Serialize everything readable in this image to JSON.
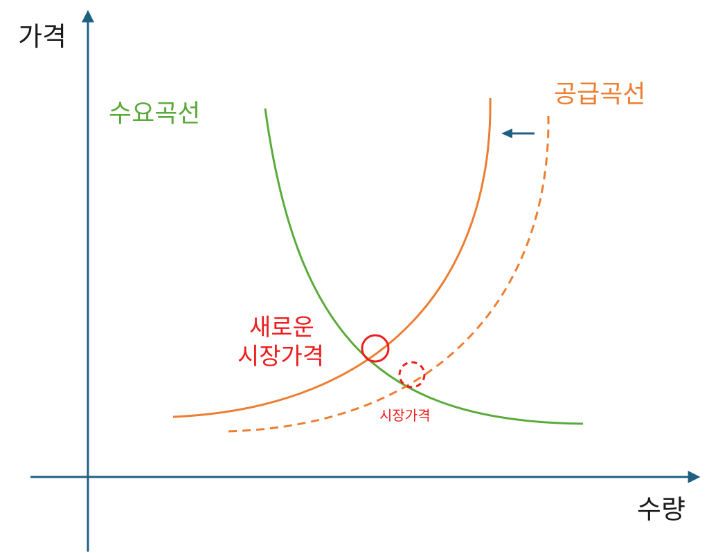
{
  "colors": {
    "axis": "#1f5f80",
    "demand": "#5aaa3a",
    "supply": "#ed7d31",
    "equilibrium": "#ee1c1c"
  },
  "axes": {
    "y_label": "가격",
    "x_label": "수량"
  },
  "curves": {
    "demand_label": "수요곡선",
    "supply_label": "공급곡선"
  },
  "equilibrium": {
    "new_line1": "새로운",
    "new_line2": "시장가격",
    "old_label": "시장가격"
  },
  "shift_arrow_icon": "arrow-left-icon"
}
